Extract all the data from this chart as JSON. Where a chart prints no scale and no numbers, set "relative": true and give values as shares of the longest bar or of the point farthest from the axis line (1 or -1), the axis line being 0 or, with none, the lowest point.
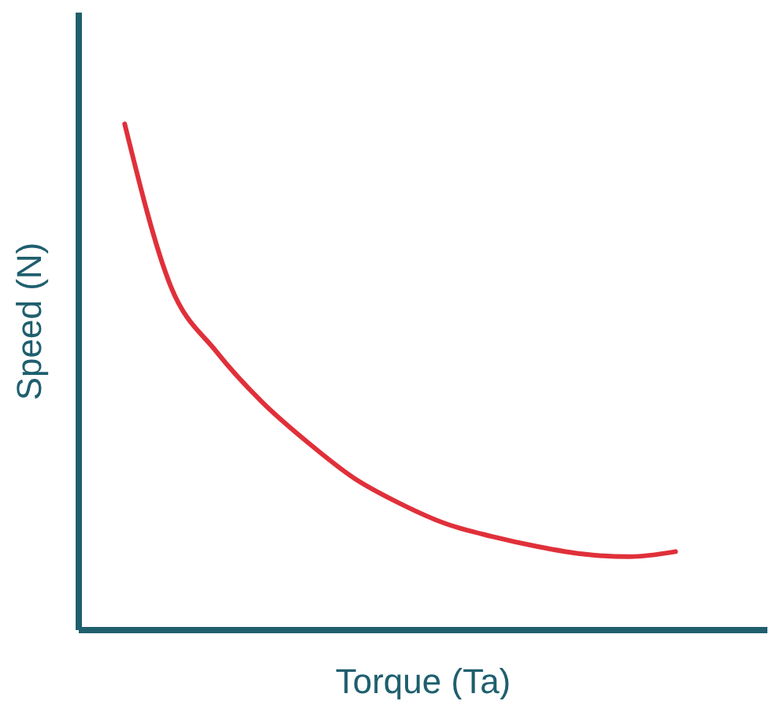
{
  "chart_data": {
    "type": "line",
    "xlabel": "Torque (Ta)",
    "ylabel": "Speed (N)",
    "relative": true,
    "categories": [
      null,
      null,
      null,
      null,
      null,
      null,
      null,
      null,
      null,
      null,
      null,
      null,
      null,
      null,
      null,
      null
    ],
    "series": [
      {
        "color": "#e0303a",
        "values": [
          null,
          1.0,
          0.68,
          0.55,
          0.45,
          0.37,
          0.3,
          0.25,
          0.21,
          0.185,
          0.165,
          0.15,
          0.145,
          0.155,
          null,
          null
        ]
      }
    ],
    "grid": false,
    "marker": "none",
    "line_style": "solid"
  }
}
